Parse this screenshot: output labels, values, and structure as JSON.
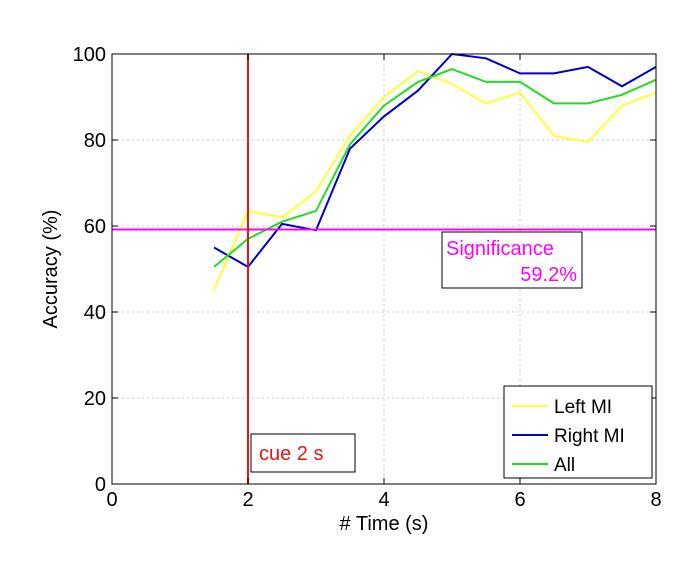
{
  "chart_data": {
    "type": "line",
    "title": "",
    "xlabel": "# Time (s)",
    "ylabel": "Accuracy (%)",
    "xlim": [
      0,
      8
    ],
    "ylim": [
      0,
      100
    ],
    "xticks": [
      0,
      2,
      4,
      6,
      8
    ],
    "yticks": [
      0,
      20,
      40,
      60,
      80,
      100
    ],
    "grid": true,
    "legend_position": "bottom-right",
    "series": [
      {
        "name": "Left MI",
        "color": "#ffff33",
        "x": [
          1.5,
          2.0,
          2.5,
          3.0,
          3.5,
          4.0,
          4.5,
          5.0,
          5.5,
          6.0,
          6.5,
          7.0,
          7.5,
          8.0
        ],
        "values": [
          45,
          63.5,
          62,
          68,
          81,
          90,
          96,
          93,
          88.5,
          91,
          81,
          79.5,
          88,
          91
        ]
      },
      {
        "name": "Right MI",
        "color": "#0000cc",
        "x": [
          1.5,
          2.0,
          2.5,
          3.0,
          3.5,
          4.0,
          4.5,
          5.0,
          5.5,
          6.0,
          6.5,
          7.0,
          7.5,
          8.0
        ],
        "values": [
          55,
          50.5,
          60.5,
          59,
          78,
          85.5,
          91.5,
          100,
          99,
          95.5,
          95.5,
          97,
          92.5,
          97
        ]
      },
      {
        "name": "All",
        "color": "#22dd22",
        "x": [
          1.5,
          2.0,
          2.5,
          3.0,
          3.5,
          4.0,
          4.5,
          5.0,
          5.5,
          6.0,
          6.5,
          7.0,
          7.5,
          8.0
        ],
        "values": [
          50.5,
          57,
          61,
          63.5,
          79,
          88,
          93.5,
          96.5,
          93.5,
          93.5,
          88.5,
          88.5,
          90.5,
          94
        ]
      }
    ],
    "reference_lines": {
      "significance": {
        "y": 59.2,
        "color": "#ff00ff",
        "label_line1": "Significance",
        "label_line2": "59.2%"
      },
      "cue": {
        "x": 2,
        "color": "#ee1111",
        "label": "cue 2 s"
      }
    }
  }
}
